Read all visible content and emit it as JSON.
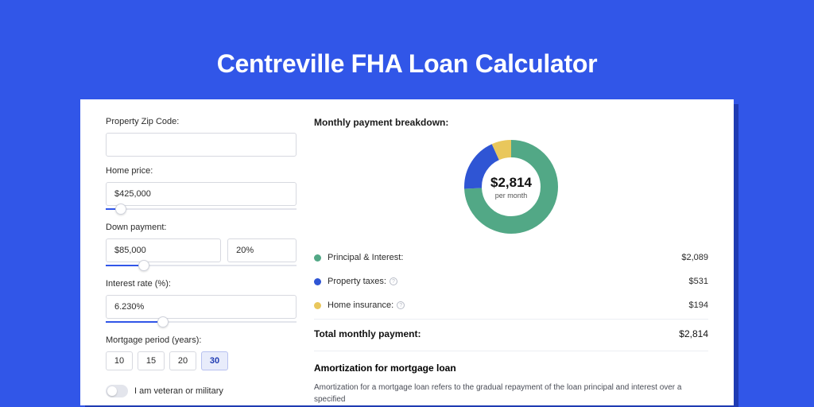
{
  "page": {
    "title": "Centreville FHA Loan Calculator",
    "background_color": "#3156e8",
    "card_shadow_color": "#1f3bb3"
  },
  "form": {
    "zip": {
      "label": "Property Zip Code:",
      "value": ""
    },
    "home_price": {
      "label": "Home price:",
      "value": "$425,000",
      "slider_pct": 8
    },
    "down_payment": {
      "label": "Down payment:",
      "value": "$85,000",
      "pct_value": "20%",
      "slider_pct": 20
    },
    "interest": {
      "label": "Interest rate (%):",
      "value": "6.230%",
      "slider_pct": 30
    },
    "period": {
      "label": "Mortgage period (years):",
      "options": [
        "10",
        "15",
        "20",
        "30"
      ],
      "selected": "30"
    },
    "veteran": {
      "label": "I am veteran or military",
      "on": false
    }
  },
  "breakdown": {
    "title": "Monthly payment breakdown:",
    "center_amount": "$2,814",
    "center_sub": "per month",
    "donut": {
      "radius": 48,
      "stroke": 22,
      "slices": [
        {
          "key": "principal",
          "color": "#52a886",
          "fraction": 0.742
        },
        {
          "key": "taxes",
          "color": "#2f55d4",
          "fraction": 0.189
        },
        {
          "key": "insurance",
          "color": "#e9c75c",
          "fraction": 0.069
        }
      ]
    },
    "rows": [
      {
        "key": "principal",
        "color": "#52a886",
        "label": "Principal & Interest:",
        "value": "$2,089",
        "info": false
      },
      {
        "key": "taxes",
        "color": "#2f55d4",
        "label": "Property taxes:",
        "value": "$531",
        "info": true
      },
      {
        "key": "insurance",
        "color": "#e9c75c",
        "label": "Home insurance:",
        "value": "$194",
        "info": true
      }
    ],
    "total": {
      "label": "Total monthly payment:",
      "value": "$2,814"
    }
  },
  "amortization": {
    "title": "Amortization for mortgage loan",
    "text": "Amortization for a mortgage loan refers to the gradual repayment of the loan principal and interest over a specified"
  }
}
